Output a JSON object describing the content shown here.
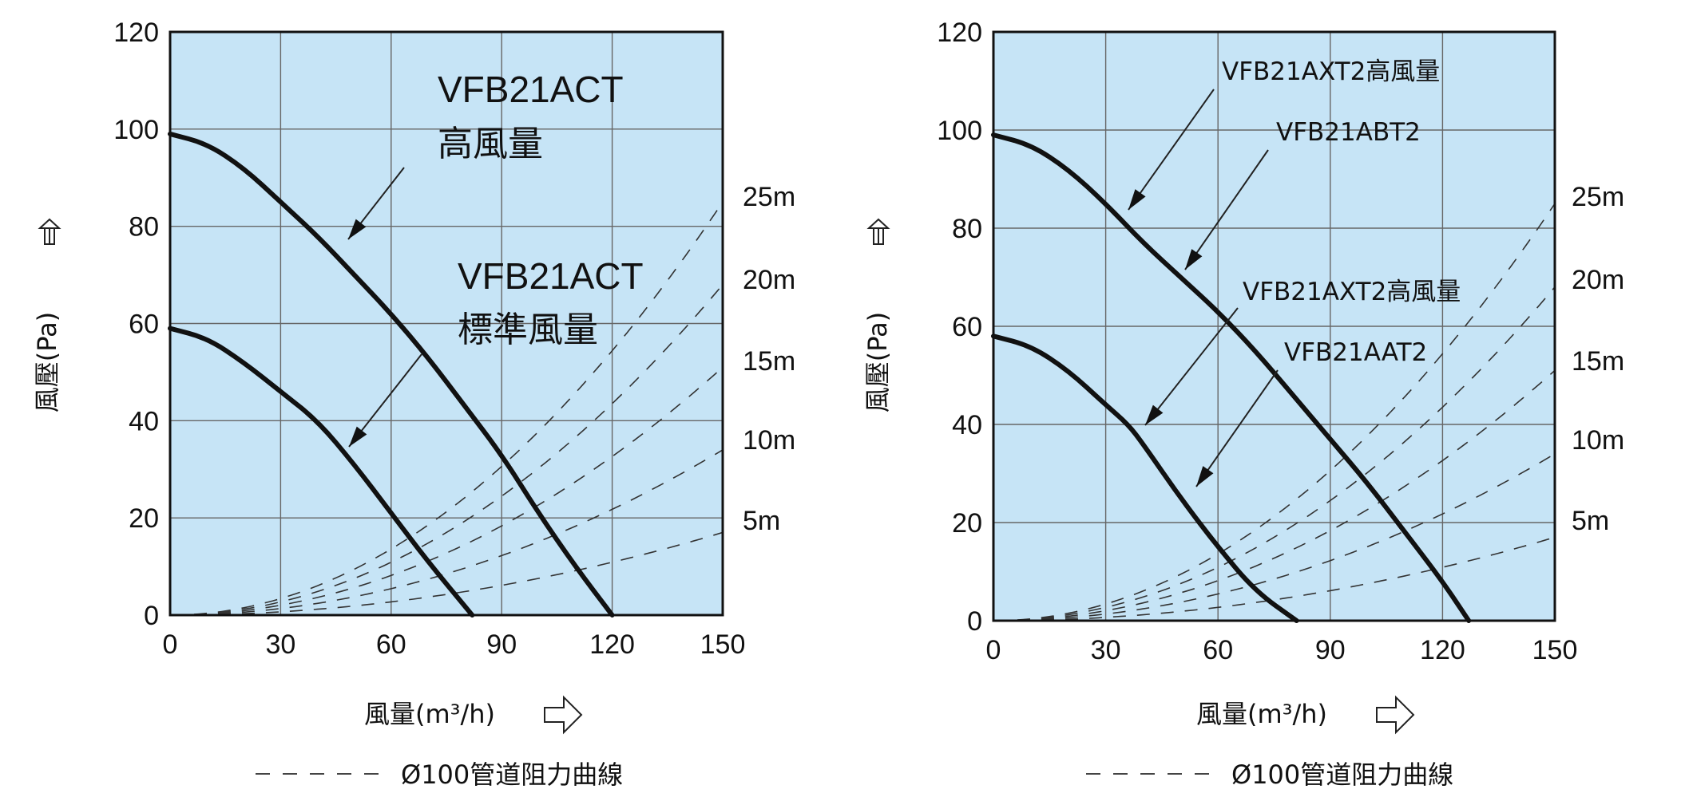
{
  "colors": {
    "plot_bg": "#c6e4f6",
    "curve": "#111111",
    "grid": "#666666",
    "dashed": "#333333"
  },
  "icons": {
    "y_arrow": "hollow-up-arrow-icon",
    "x_arrow": "hollow-right-arrow-icon"
  },
  "chart_data": [
    {
      "type": "line",
      "xlabel": "風量(m³/h)",
      "ylabel": "風壓(Pa)",
      "xlim": [
        0,
        150
      ],
      "ylim": [
        0,
        120
      ],
      "xticks": [
        "0",
        "30",
        "60",
        "90",
        "120",
        "150"
      ],
      "yticks": [
        "0",
        "20",
        "40",
        "60",
        "80",
        "100",
        "120"
      ],
      "grid": true,
      "series": [
        {
          "name": "VFB21ACT 高風量",
          "x": [
            0,
            10,
            20,
            30,
            40,
            50,
            60,
            70,
            80,
            90,
            100,
            110,
            120
          ],
          "y": [
            99,
            97,
            92,
            85,
            78,
            70,
            62,
            53,
            43,
            33,
            21,
            10,
            0
          ]
        },
        {
          "name": "VFB21ACT 標準風量",
          "x": [
            0,
            10,
            20,
            30,
            40,
            50,
            60,
            70,
            82
          ],
          "y": [
            59,
            57,
            52,
            46,
            40,
            31,
            21,
            11,
            0
          ]
        }
      ],
      "annotations": [
        {
          "lines": [
            "VFB21ACT",
            "高風量"
          ],
          "target": "VFB21ACT 高風量"
        },
        {
          "lines": [
            "VFB21ACT",
            "標準風量"
          ],
          "target": "VFB21ACT 標準風量"
        }
      ],
      "resistance_curves": {
        "labels": [
          "25m",
          "20m",
          "15m",
          "10m",
          "5m"
        ],
        "pa_at_150": [
          85,
          68,
          51,
          34,
          17
        ]
      },
      "legend": "Ø100管道阻力曲線"
    },
    {
      "type": "line",
      "xlabel": "風量(m³/h)",
      "ylabel": "風壓(Pa)",
      "xlim": [
        0,
        150
      ],
      "ylim": [
        0,
        120
      ],
      "xticks": [
        "0",
        "30",
        "60",
        "90",
        "120",
        "150"
      ],
      "yticks": [
        "0",
        "20",
        "40",
        "60",
        "80",
        "100",
        "120"
      ],
      "grid": true,
      "series": [
        {
          "name": "VFB21AXT2高風量 / VFB21ABT2",
          "x": [
            0,
            10,
            20,
            30,
            40,
            50,
            60,
            70,
            80,
            90,
            100,
            110,
            120,
            127
          ],
          "y": [
            99,
            97,
            92,
            85,
            77,
            70,
            63,
            55,
            46,
            37,
            28,
            18,
            8,
            0
          ]
        },
        {
          "name": "VFB21AXT2高風量 / VFB21AAT2",
          "x": [
            0,
            10,
            20,
            30,
            36,
            40,
            50,
            60,
            70,
            81
          ],
          "y": [
            58,
            56,
            51,
            44,
            40,
            36,
            25,
            15,
            6,
            0
          ]
        }
      ],
      "annotations": [
        {
          "lines": [
            "VFB21AXT2高風量"
          ],
          "target": "VFB21AXT2高風量 / VFB21ABT2"
        },
        {
          "lines": [
            "VFB21ABT2"
          ],
          "target": "VFB21AXT2高風量 / VFB21ABT2"
        },
        {
          "lines": [
            "VFB21AXT2高風量"
          ],
          "target": "VFB21AXT2高風量 / VFB21AAT2"
        },
        {
          "lines": [
            "VFB21AAT2"
          ],
          "target": "VFB21AXT2高風量 / VFB21AAT2"
        }
      ],
      "resistance_curves": {
        "labels": [
          "25m",
          "20m",
          "15m",
          "10m",
          "5m"
        ],
        "pa_at_150": [
          85,
          68,
          51,
          34,
          17
        ]
      },
      "legend": "Ø100管道阻力曲線"
    }
  ]
}
